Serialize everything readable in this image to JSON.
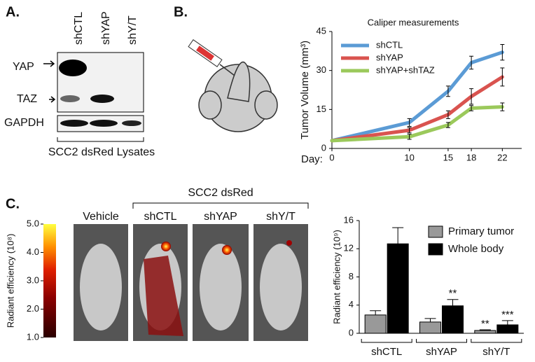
{
  "panel_labels": [
    "A.",
    "B.",
    "C."
  ],
  "blot": {
    "lanes": [
      "shCTL",
      "shYAP",
      "shY/T"
    ],
    "bands": [
      "YAP",
      "TAZ",
      "GAPDH"
    ],
    "caption": "SCC2 dsRed Lysates"
  },
  "imaging": {
    "group_label": "SCC2 dsRed",
    "panels": [
      "Vehicle",
      "shCTL",
      "shYAP",
      "shY/T"
    ],
    "colorbar": {
      "title": "Radiant efficiency (10⁸)",
      "lim": [
        1,
        5
      ],
      "ticks": [
        {
          "value": 1,
          "label": "1.0"
        },
        {
          "value": 2,
          "label": "2.0"
        },
        {
          "value": 3,
          "label": "3.0"
        },
        {
          "value": 4,
          "label": "4.0"
        },
        {
          "value": 5,
          "label": "5.0"
        }
      ]
    }
  },
  "chart_data": [
    {
      "type": "line",
      "title": "Caliper measurements",
      "y_label": "Tumor Volume (mm³)",
      "x_label": "Day:",
      "x": [
        0,
        10,
        15,
        18,
        22
      ],
      "xlim": [
        0,
        24.5
      ],
      "xticks": [
        0,
        10,
        15,
        18,
        22
      ],
      "ylim": [
        0,
        45
      ],
      "yticks": [
        0,
        15,
        30,
        45
      ],
      "series": [
        {
          "name": "shCTL",
          "color": "#5b9bd5",
          "values": [
            3,
            10,
            22,
            33,
            37
          ],
          "errors": [
            0,
            1.5,
            2,
            2.5,
            3
          ]
        },
        {
          "name": "shYAP",
          "color": "#d9534f",
          "values": [
            3,
            7,
            13,
            20,
            27.5
          ],
          "errors": [
            0,
            1,
            1.5,
            3,
            3.5
          ]
        },
        {
          "name": "shYAP+shTAZ",
          "color": "#9bc95b",
          "values": [
            3,
            4.5,
            9,
            15.5,
            16
          ],
          "errors": [
            0,
            1,
            1,
            1,
            1.5
          ]
        }
      ]
    },
    {
      "type": "bar",
      "y_label": "Radiant efficiency (10⁹)",
      "categories": [
        "shCTL",
        "shYAP",
        "shY/T"
      ],
      "ylim": [
        0,
        16
      ],
      "yticks": [
        0,
        4,
        8,
        12,
        16
      ],
      "series": [
        {
          "name": "Primary tumor",
          "color": "#999999",
          "values": [
            2.6,
            1.6,
            0.4
          ],
          "errors": [
            0.6,
            0.5,
            0.1
          ],
          "significance": [
            null,
            null,
            "**"
          ]
        },
        {
          "name": "Whole body",
          "color": "#000000",
          "values": [
            12.7,
            3.9,
            1.2
          ],
          "errors": [
            2.3,
            0.9,
            0.6
          ],
          "significance": [
            null,
            "**",
            "***"
          ]
        }
      ]
    }
  ]
}
